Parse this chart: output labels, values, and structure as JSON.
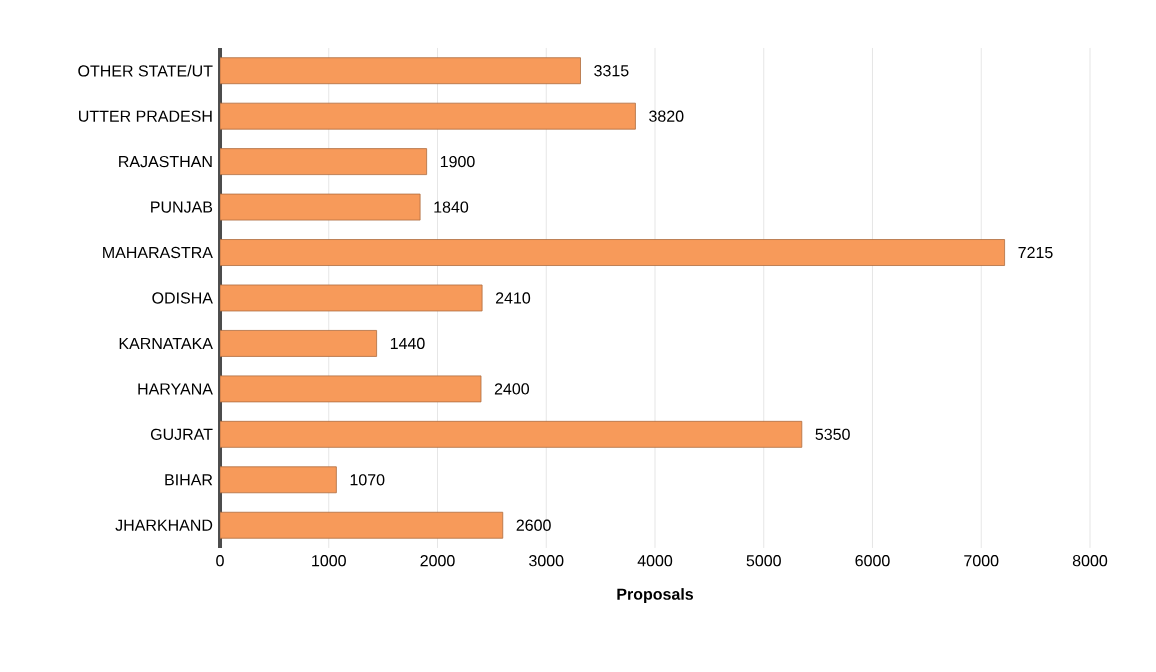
{
  "chart_data": {
    "type": "bar",
    "orientation": "horizontal",
    "xlabel": "Proposals",
    "categories": [
      "OTHER STATE/UT",
      "UTTER PRADESH",
      "RAJASTHAN",
      "PUNJAB",
      "MAHARASTRA",
      "ODISHA",
      "KARNATAKA",
      "HARYANA",
      "GUJRAT",
      "BIHAR",
      "JHARKHAND"
    ],
    "values": [
      3315,
      3820,
      1900,
      1840,
      7215,
      2410,
      1440,
      2400,
      5350,
      1070,
      2600
    ],
    "color": "#f79a5a",
    "xlim": [
      0,
      8000
    ],
    "xticks": [
      0,
      1000,
      2000,
      3000,
      4000,
      5000,
      6000,
      7000,
      8000
    ],
    "grid": "x",
    "data_labels": true
  }
}
